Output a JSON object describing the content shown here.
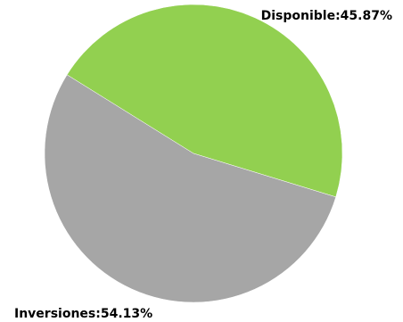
{
  "chart_data": {
    "type": "pie",
    "title": "",
    "slices": [
      {
        "name": "Disponible",
        "value": 45.87,
        "label": "Disponible:45.87%",
        "color": "#92d050"
      },
      {
        "name": "Inversiones",
        "value": 54.13,
        "label": "Inversiones:54.13%",
        "color": "#a6a6a6"
      }
    ],
    "legend": "none"
  }
}
